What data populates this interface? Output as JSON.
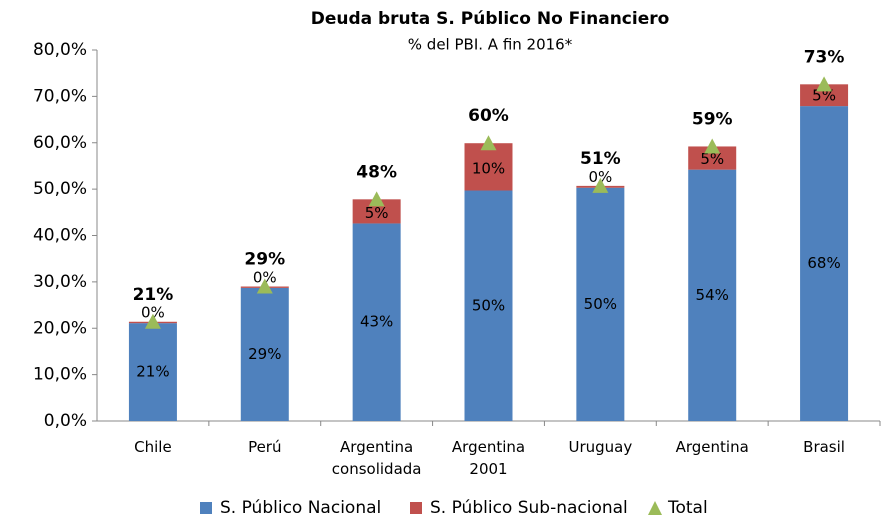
{
  "chart_data": {
    "type": "stacked_bar",
    "title": "Deuda bruta S. Público No Financiero",
    "subtitle": "% del PBI. A fin 2016*",
    "categories": [
      "Chile",
      "Perú",
      "Argentina consolidada",
      "Argentina 2001",
      "Uruguay",
      "Argentina",
      "Brasil"
    ],
    "series": [
      {
        "name": "S. Público Nacional",
        "color": "#4f81bd",
        "values": [
          21.1,
          28.7,
          42.6,
          49.7,
          50.3,
          54.2,
          67.9
        ],
        "value_labels": [
          "21%",
          "29%",
          "43%",
          "50%",
          "50%",
          "54%",
          "68%"
        ]
      },
      {
        "name": "S. Público Sub-nacional",
        "color": "#c0504d",
        "values": [
          0.3,
          0.3,
          5.2,
          10.2,
          0.4,
          5.0,
          4.7
        ],
        "value_labels": [
          "0%",
          "0%",
          "5%",
          "10%",
          "0%",
          "5%",
          "5%"
        ]
      },
      {
        "name": "Total",
        "color": "#9bbb59",
        "values": [
          21.4,
          29.0,
          47.8,
          59.9,
          50.7,
          59.2,
          72.6
        ],
        "value_labels": [
          "21%",
          "29%",
          "48%",
          "60%",
          "51%",
          "59%",
          "73%"
        ]
      }
    ],
    "ylim": [
      0,
      80
    ],
    "yticks": [
      {
        "value": 0,
        "label": "0,0%"
      },
      {
        "value": 10,
        "label": "10,0%"
      },
      {
        "value": 20,
        "label": "20,0%"
      },
      {
        "value": 30,
        "label": "30,0%"
      },
      {
        "value": 40,
        "label": "40,0%"
      },
      {
        "value": 50,
        "label": "50,0%"
      },
      {
        "value": 60,
        "label": "60,0%"
      },
      {
        "value": 70,
        "label": "70,0%"
      },
      {
        "value": 80,
        "label": "80,0%"
      }
    ],
    "legend": "bottom"
  }
}
